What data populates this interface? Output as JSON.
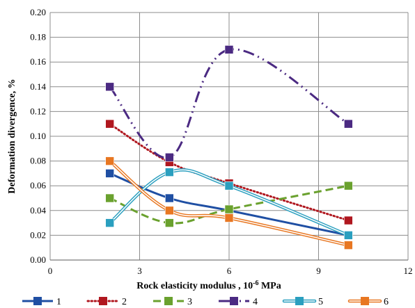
{
  "chart_data": {
    "type": "line",
    "title": "",
    "xlabel": "Rock elasticity modulus , 10",
    "xlabel_exponent": "-6",
    "xlabel_unit": " MPa",
    "ylabel": "Deformation divergence, %",
    "xlim": [
      0,
      12
    ],
    "ylim": [
      0,
      0.2
    ],
    "x_ticks": [
      0,
      3,
      6,
      9,
      12
    ],
    "x_tick_labels": [
      "0",
      "3",
      "6",
      "9",
      "12"
    ],
    "y_ticks": [
      0,
      0.02,
      0.04,
      0.06,
      0.08,
      0.1,
      0.12,
      0.14,
      0.16,
      0.18,
      0.2
    ],
    "y_tick_labels": [
      "0.00",
      "0.02",
      "0.04",
      "0.06",
      "0.08",
      "0.10",
      "0.12",
      "0.14",
      "0.16",
      "0.18",
      "0.20"
    ],
    "grid": true,
    "legend_position": "bottom",
    "x": [
      2,
      4,
      6,
      10
    ],
    "series": [
      {
        "name": "1",
        "values": [
          0.07,
          0.05,
          0.04,
          0.02
        ],
        "color": "#1f4fa3",
        "style": "solid"
      },
      {
        "name": "2",
        "values": [
          0.11,
          0.079,
          0.062,
          0.032
        ],
        "color": "#b0171f",
        "style": "dotted"
      },
      {
        "name": "3",
        "values": [
          0.05,
          0.03,
          0.041,
          0.06
        ],
        "color": "#6aa12e",
        "style": "dashed"
      },
      {
        "name": "4",
        "values": [
          0.14,
          0.083,
          0.17,
          0.11
        ],
        "color": "#4b2a82",
        "style": "dashdot"
      },
      {
        "name": "5",
        "values": [
          0.03,
          0.071,
          0.06,
          0.02
        ],
        "color": "#2a9fbf",
        "style": "double"
      },
      {
        "name": "6",
        "values": [
          0.08,
          0.04,
          0.034,
          0.012
        ],
        "color": "#e87722",
        "style": "double"
      }
    ]
  }
}
